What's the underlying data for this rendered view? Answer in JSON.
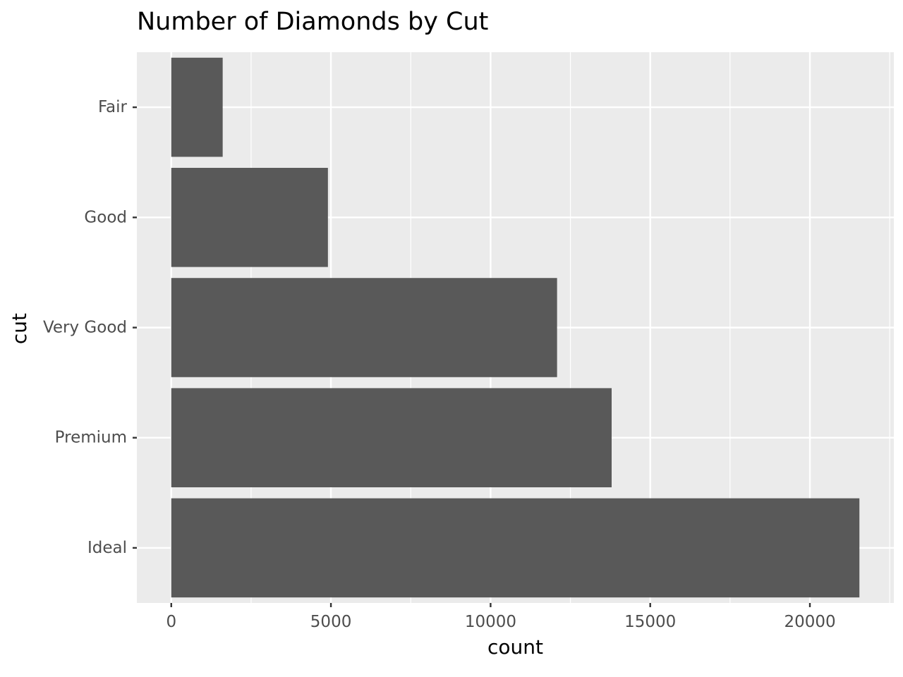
{
  "chart_data": {
    "type": "bar",
    "orientation": "horizontal",
    "title": "Number of Diamonds by Cut",
    "xlabel": "count",
    "ylabel": "cut",
    "categories": [
      "Fair",
      "Good",
      "Very Good",
      "Premium",
      "Ideal"
    ],
    "values": [
      1610,
      4906,
      12082,
      13791,
      21551
    ],
    "xlim": [
      -1077.55,
      22628.55
    ],
    "x_ticks": [
      0,
      5000,
      10000,
      15000,
      20000
    ],
    "x_tick_labels": [
      "0",
      "5000",
      "10000",
      "15000",
      "20000"
    ],
    "grid": true,
    "legend": "none",
    "colors": {
      "panel_background": "#ebebeb",
      "grid_major": "#ffffff",
      "bar_fill": "#595959",
      "tick_text": "#4d4d4d",
      "tick_mark": "#333333"
    }
  }
}
